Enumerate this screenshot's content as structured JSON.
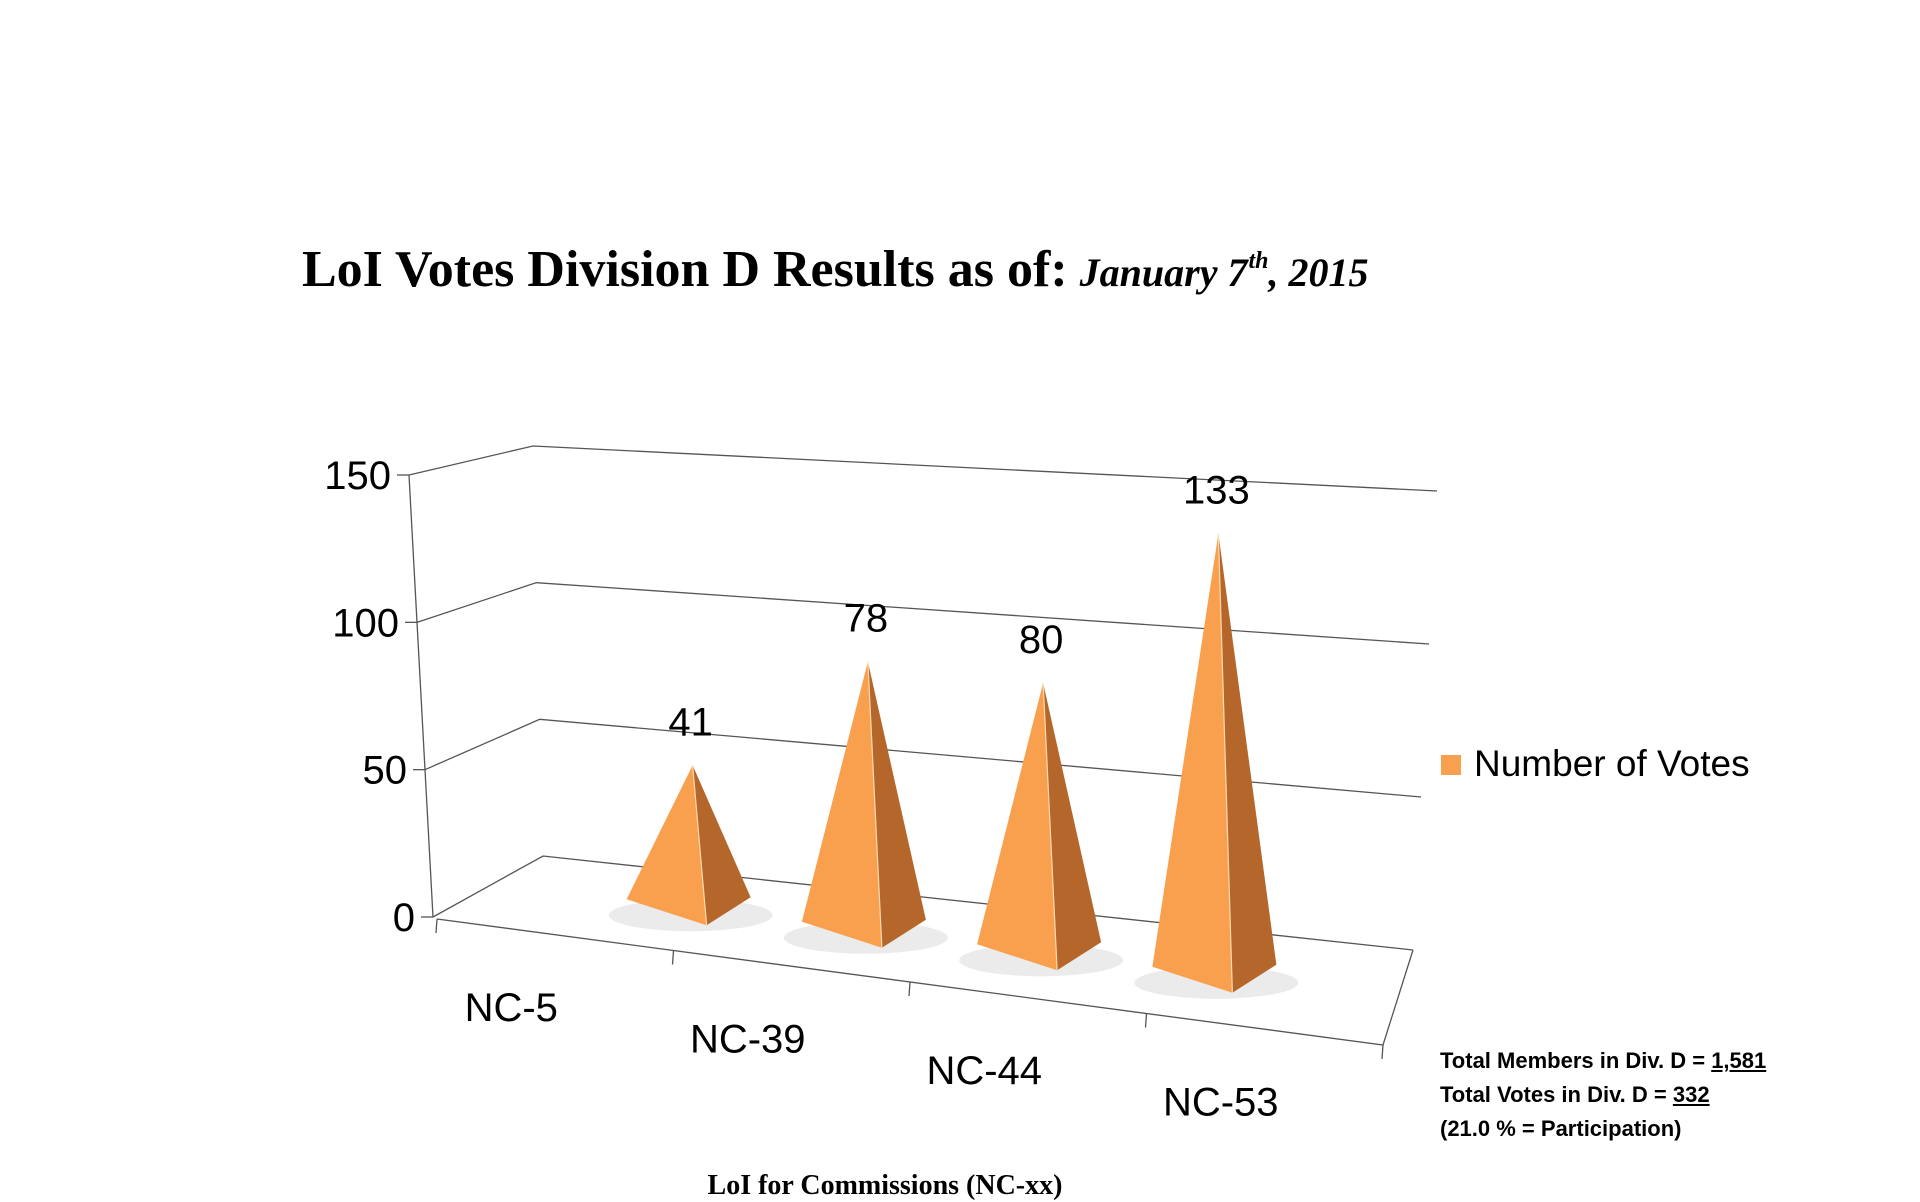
{
  "title": {
    "main": "LoI Votes Division D Results as of:",
    "date_month_day": "January 7",
    "date_suffix": "th",
    "date_year": ", 2015"
  },
  "chart_data": {
    "type": "bar",
    "style": "3d-pyramid",
    "categories": [
      "NC-5",
      "NC-39",
      "NC-44",
      "NC-53"
    ],
    "series": [
      {
        "name": "Number of Votes",
        "values": [
          41,
          78,
          80,
          133
        ],
        "color": "#f9a04f"
      }
    ],
    "ylim": [
      0,
      150
    ],
    "yticks": [
      "0",
      "50",
      "100",
      "150"
    ],
    "xlabel": "LoI for Commissions (NC-xx)",
    "ylabel": "",
    "grid": true,
    "legend": "right"
  },
  "stats": {
    "line1_prefix": "Total Members in Div. D = ",
    "line1_value": "1,581",
    "line2_prefix": "Total Votes in Div. D = ",
    "line2_value": "332",
    "line3": "(21.0 % = Participation)"
  },
  "colors": {
    "pyramid_front": "#f9a04f",
    "pyramid_side": "#b5672b",
    "grid": "#555555"
  }
}
